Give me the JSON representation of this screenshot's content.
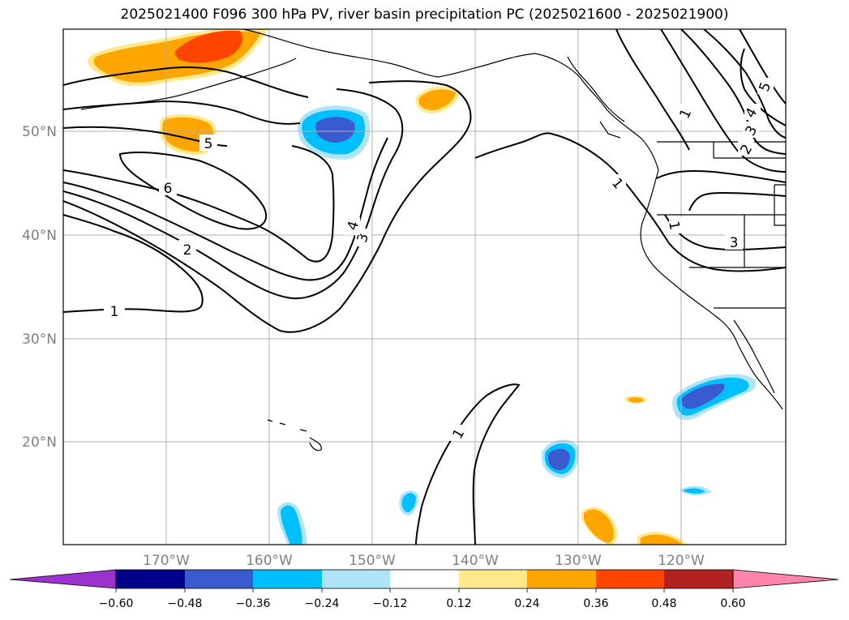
{
  "title": "2025021400 F096 300 hPa PV, river basin precipitation PC (2025021600 - 2025021900)",
  "map": {
    "lon_labels": [
      "170°W",
      "160°W",
      "150°W",
      "140°W",
      "130°W",
      "120°W"
    ],
    "lat_labels": [
      "20°N",
      "30°N",
      "40°N",
      "50°N"
    ],
    "pv_contour_labels": [
      "1",
      "1",
      "1",
      "1",
      "1",
      "2",
      "2",
      "3",
      "3",
      "3",
      "4",
      "4",
      "5",
      "5",
      "6"
    ]
  },
  "colorbar": {
    "ticks": [
      "−0.60",
      "−0.48",
      "−0.36",
      "−0.24",
      "−0.12",
      "0.12",
      "0.24",
      "0.36",
      "0.48",
      "0.60"
    ],
    "colors": [
      "#9933cc",
      "#00008b",
      "#3a5ad0",
      "#00bfff",
      "#aee3f8",
      "#ffffff",
      "#ffe98a",
      "#ffa500",
      "#ff4500",
      "#b22222",
      "#ff85aa"
    ]
  },
  "colors": {
    "neg_1": "#aee3f8",
    "neg_2": "#00bfff",
    "neg_3": "#3a5ad0",
    "pos_1": "#ffe98a",
    "pos_2": "#ffa500",
    "pos_3": "#ff4500"
  }
}
